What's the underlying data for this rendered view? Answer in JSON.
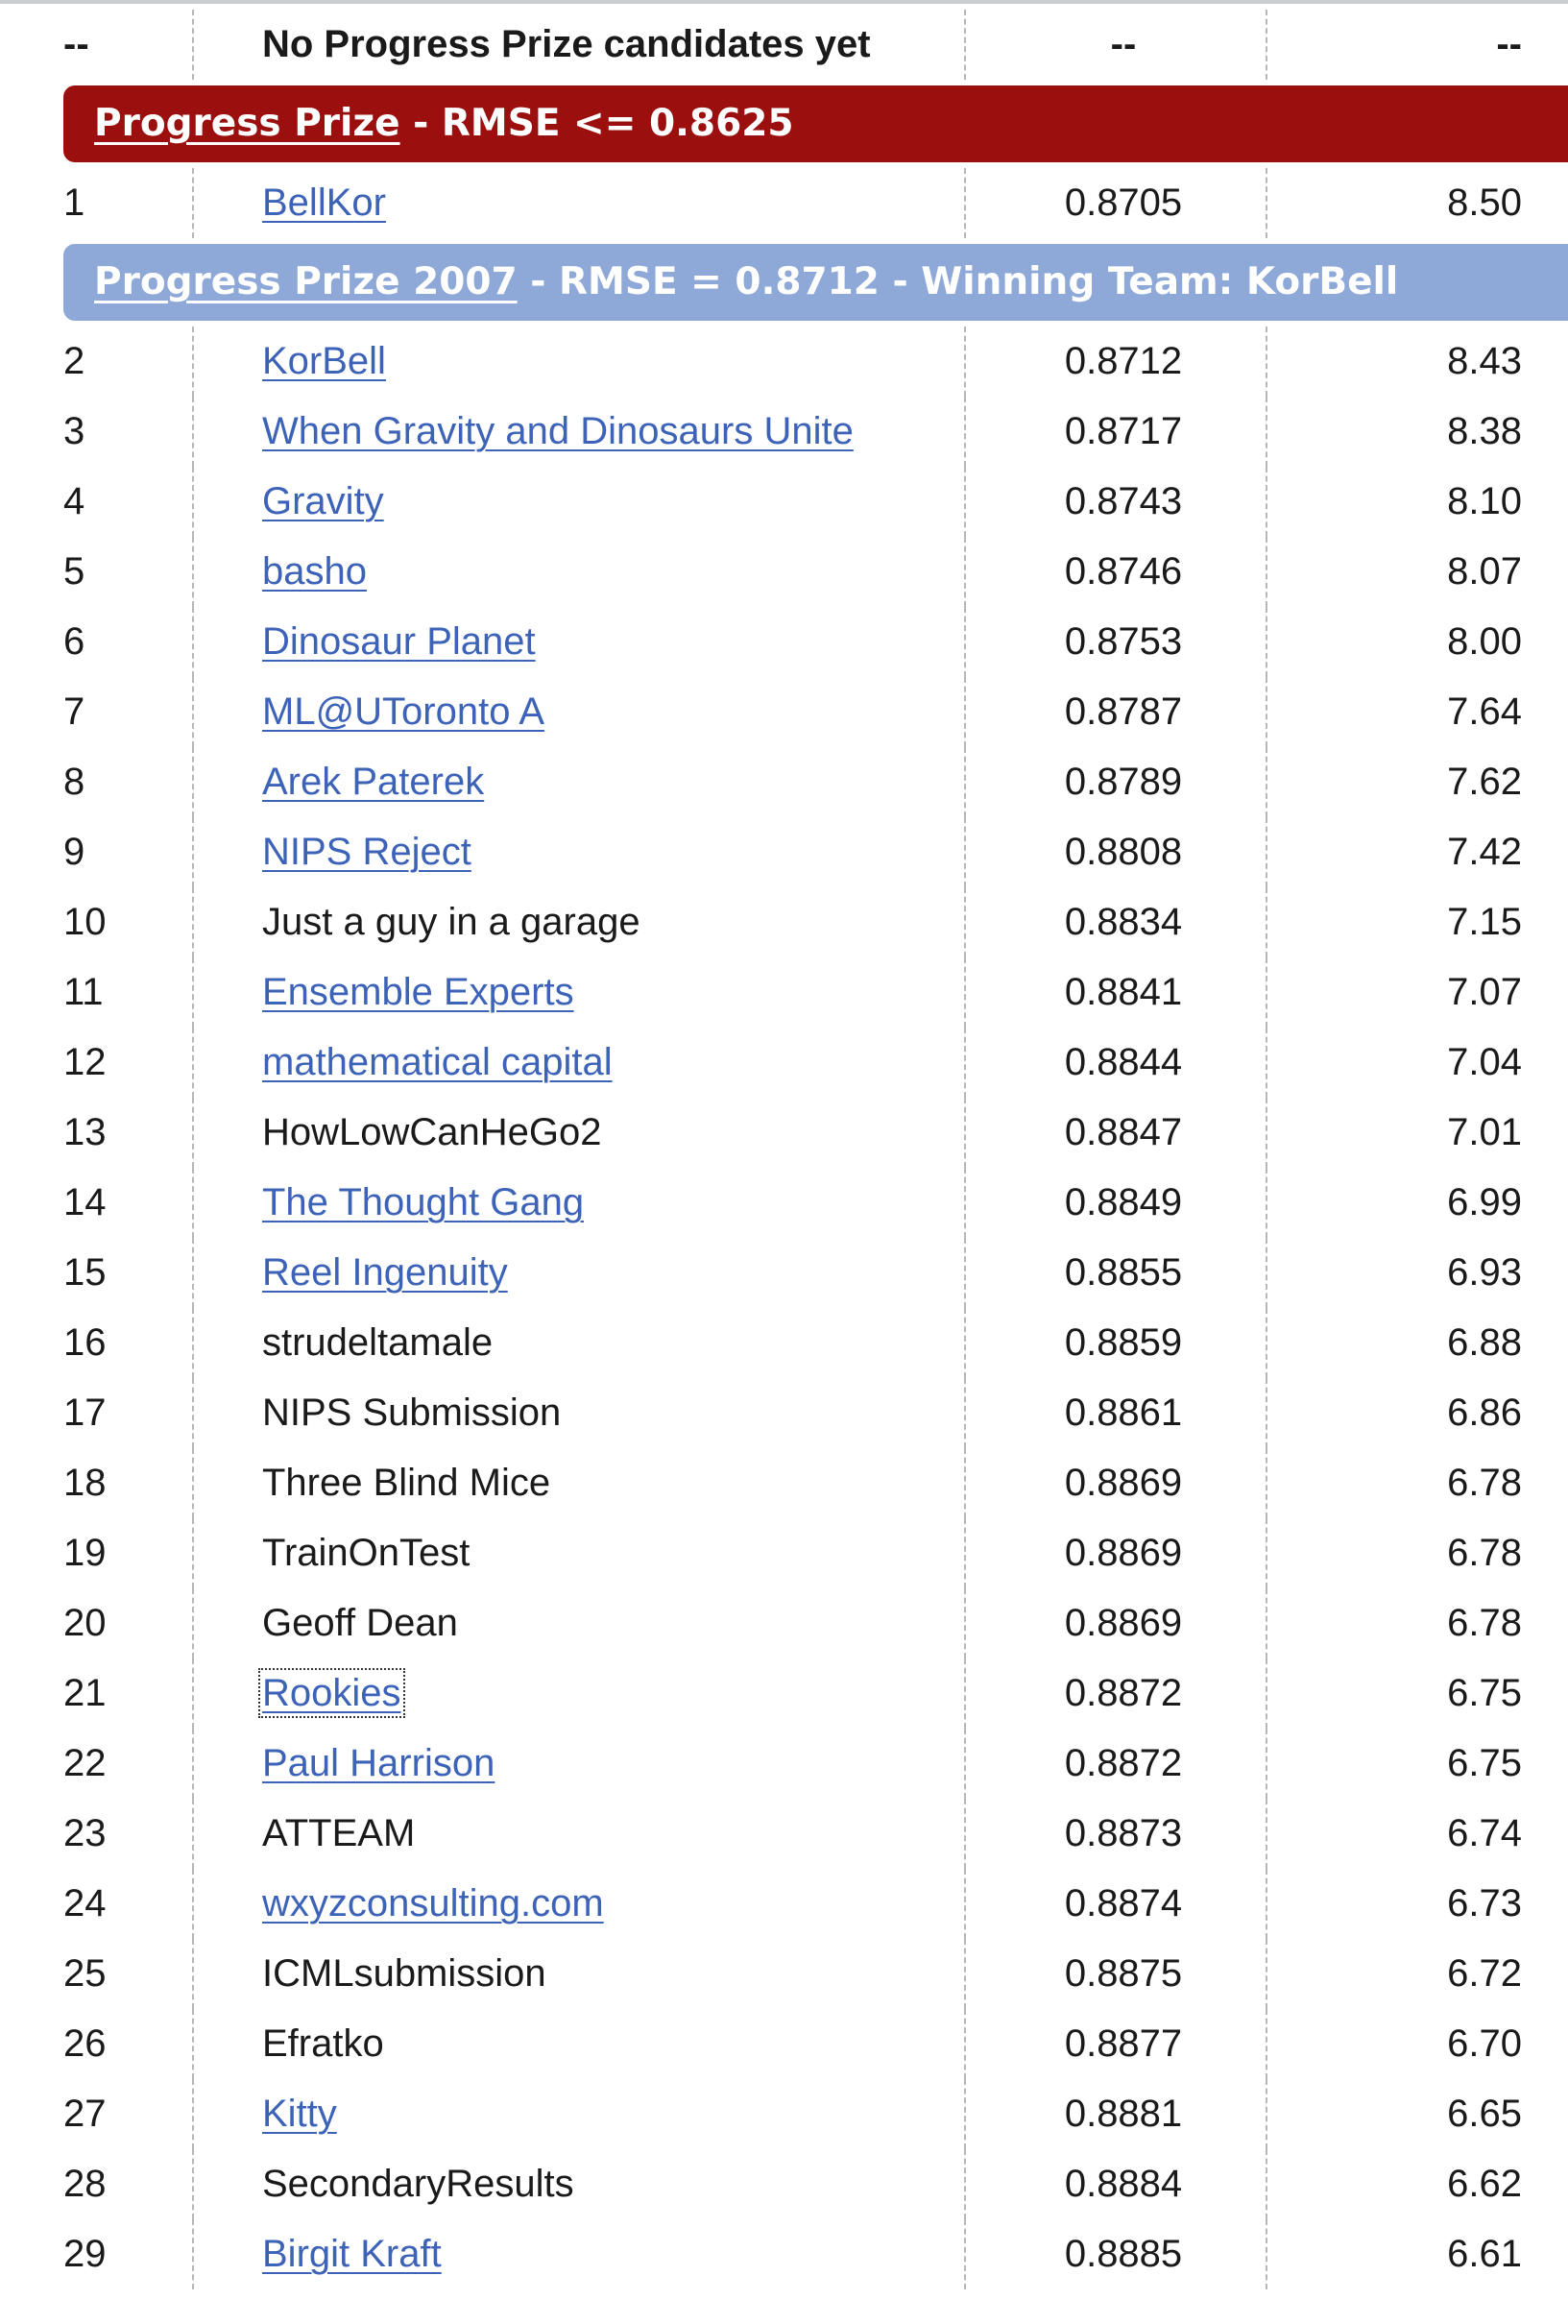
{
  "leaderboard": {
    "header": {
      "rank": "--",
      "team": "No Progress Prize candidates yet",
      "score": "--",
      "improvement": "--"
    },
    "progress_banner": {
      "link_label": "Progress Prize",
      "suffix": " - RMSE <= 0.8625"
    },
    "leader": {
      "rank": "1",
      "team": "BellKor",
      "linked": true,
      "score": "0.8705",
      "improvement": "8.50"
    },
    "winner_banner": {
      "link_label": "Progress Prize 2007",
      "suffix": " - RMSE = 0.8712 - Winning Team: KorBell"
    },
    "rows": [
      {
        "rank": "2",
        "team": "KorBell",
        "linked": true,
        "score": "0.8712",
        "improvement": "8.43"
      },
      {
        "rank": "3",
        "team": "When Gravity and Dinosaurs Unite",
        "linked": true,
        "score": "0.8717",
        "improvement": "8.38"
      },
      {
        "rank": "4",
        "team": "Gravity",
        "linked": true,
        "score": "0.8743",
        "improvement": "8.10"
      },
      {
        "rank": "5",
        "team": "basho",
        "linked": true,
        "score": "0.8746",
        "improvement": "8.07"
      },
      {
        "rank": "6",
        "team": "Dinosaur Planet",
        "linked": true,
        "score": "0.8753",
        "improvement": "8.00"
      },
      {
        "rank": "7",
        "team": "ML@UToronto A",
        "linked": true,
        "score": "0.8787",
        "improvement": "7.64"
      },
      {
        "rank": "8",
        "team": "Arek Paterek",
        "linked": true,
        "score": "0.8789",
        "improvement": "7.62"
      },
      {
        "rank": "9",
        "team": "NIPS Reject",
        "linked": true,
        "score": "0.8808",
        "improvement": "7.42"
      },
      {
        "rank": "10",
        "team": "Just a guy in a garage",
        "linked": false,
        "score": "0.8834",
        "improvement": "7.15"
      },
      {
        "rank": "11",
        "team": "Ensemble Experts",
        "linked": true,
        "score": "0.8841",
        "improvement": "7.07"
      },
      {
        "rank": "12",
        "team": "mathematical capital",
        "linked": true,
        "score": "0.8844",
        "improvement": "7.04"
      },
      {
        "rank": "13",
        "team": "HowLowCanHeGo2",
        "linked": false,
        "score": "0.8847",
        "improvement": "7.01"
      },
      {
        "rank": "14",
        "team": "The Thought Gang",
        "linked": true,
        "score": "0.8849",
        "improvement": "6.99"
      },
      {
        "rank": "15",
        "team": "Reel Ingenuity",
        "linked": true,
        "score": "0.8855",
        "improvement": "6.93"
      },
      {
        "rank": "16",
        "team": "strudeltamale",
        "linked": false,
        "score": "0.8859",
        "improvement": "6.88"
      },
      {
        "rank": "17",
        "team": "NIPS Submission",
        "linked": false,
        "score": "0.8861",
        "improvement": "6.86"
      },
      {
        "rank": "18",
        "team": "Three Blind Mice",
        "linked": false,
        "score": "0.8869",
        "improvement": "6.78"
      },
      {
        "rank": "19",
        "team": "TrainOnTest",
        "linked": false,
        "score": "0.8869",
        "improvement": "6.78"
      },
      {
        "rank": "20",
        "team": "Geoff Dean",
        "linked": false,
        "score": "0.8869",
        "improvement": "6.78"
      },
      {
        "rank": "21",
        "team": "Rookies",
        "linked": true,
        "focused": true,
        "score": "0.8872",
        "improvement": "6.75"
      },
      {
        "rank": "22",
        "team": "Paul Harrison",
        "linked": true,
        "score": "0.8872",
        "improvement": "6.75"
      },
      {
        "rank": "23",
        "team": "ATTEAM",
        "linked": false,
        "score": "0.8873",
        "improvement": "6.74"
      },
      {
        "rank": "24",
        "team": "wxyzconsulting.com",
        "linked": true,
        "score": "0.8874",
        "improvement": "6.73"
      },
      {
        "rank": "25",
        "team": "ICMLsubmission",
        "linked": false,
        "score": "0.8875",
        "improvement": "6.72"
      },
      {
        "rank": "26",
        "team": "Efratko",
        "linked": false,
        "score": "0.8877",
        "improvement": "6.70"
      },
      {
        "rank": "27",
        "team": "Kitty",
        "linked": true,
        "score": "0.8881",
        "improvement": "6.65"
      },
      {
        "rank": "28",
        "team": "SecondaryResults",
        "linked": false,
        "score": "0.8884",
        "improvement": "6.62"
      },
      {
        "rank": "29",
        "team": "Birgit Kraft",
        "linked": true,
        "score": "0.8885",
        "improvement": "6.61"
      }
    ]
  },
  "colors": {
    "link": "#3d63b8",
    "progress_banner_bg": "#9b0f0f",
    "winner_banner_bg": "#8ea8d8",
    "separator": "#b7b7b7"
  }
}
